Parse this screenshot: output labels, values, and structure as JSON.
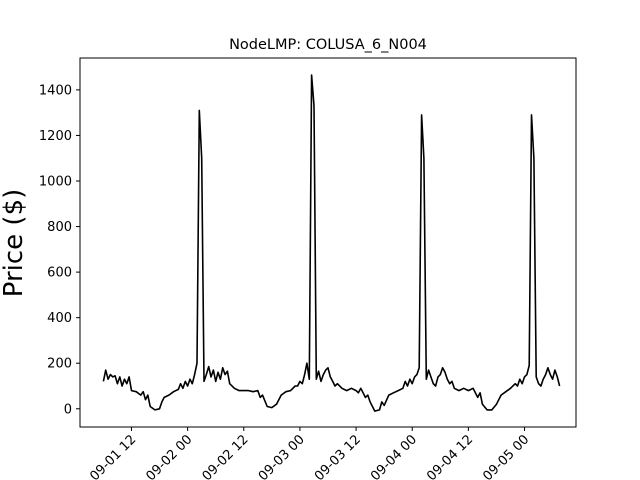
{
  "chart_data": {
    "type": "line",
    "title": "NodeLMP: COLUSA_6_N004",
    "xlabel": "",
    "ylabel": "Price ($)",
    "x_unit": "datetime",
    "xlim": [
      "2020-09-01T01:00",
      "2020-09-05T11:00"
    ],
    "ylim": [
      -80,
      1540
    ],
    "x_ticks": [
      {
        "value": "2020-09-01T12:00",
        "label": "09-01 12"
      },
      {
        "value": "2020-09-02T00:00",
        "label": "09-02 00"
      },
      {
        "value": "2020-09-02T12:00",
        "label": "09-02 12"
      },
      {
        "value": "2020-09-03T00:00",
        "label": "09-03 00"
      },
      {
        "value": "2020-09-03T12:00",
        "label": "09-03 12"
      },
      {
        "value": "2020-09-04T00:00",
        "label": "09-04 00"
      },
      {
        "value": "2020-09-04T12:00",
        "label": "09-04 12"
      },
      {
        "value": "2020-09-05T00:00",
        "label": "09-05 00"
      }
    ],
    "y_ticks": [
      0,
      200,
      400,
      600,
      800,
      1000,
      1200,
      1400
    ],
    "grid": false,
    "series": [
      {
        "color": "#000000",
        "points": [
          [
            "2020-09-01T06:00",
            120
          ],
          [
            "2020-09-01T06:30",
            170
          ],
          [
            "2020-09-01T07:00",
            130
          ],
          [
            "2020-09-01T07:30",
            150
          ],
          [
            "2020-09-01T08:00",
            140
          ],
          [
            "2020-09-01T08:30",
            145
          ],
          [
            "2020-09-01T09:00",
            110
          ],
          [
            "2020-09-01T09:30",
            140
          ],
          [
            "2020-09-01T10:00",
            100
          ],
          [
            "2020-09-01T10:30",
            130
          ],
          [
            "2020-09-01T11:00",
            110
          ],
          [
            "2020-09-01T11:30",
            140
          ],
          [
            "2020-09-01T12:00",
            80
          ],
          [
            "2020-09-01T13:00",
            75
          ],
          [
            "2020-09-01T14:00",
            60
          ],
          [
            "2020-09-01T14:30",
            75
          ],
          [
            "2020-09-01T15:00",
            40
          ],
          [
            "2020-09-01T15:30",
            60
          ],
          [
            "2020-09-01T16:00",
            10
          ],
          [
            "2020-09-01T17:00",
            -5
          ],
          [
            "2020-09-01T18:00",
            0
          ],
          [
            "2020-09-01T18:30",
            30
          ],
          [
            "2020-09-01T19:00",
            50
          ],
          [
            "2020-09-01T20:00",
            60
          ],
          [
            "2020-09-01T21:00",
            75
          ],
          [
            "2020-09-01T22:00",
            85
          ],
          [
            "2020-09-01T22:30",
            110
          ],
          [
            "2020-09-01T23:00",
            90
          ],
          [
            "2020-09-01T23:30",
            120
          ],
          [
            "2020-09-02T00:00",
            100
          ],
          [
            "2020-09-02T00:30",
            130
          ],
          [
            "2020-09-02T01:00",
            110
          ],
          [
            "2020-09-02T01:30",
            150
          ],
          [
            "2020-09-02T02:00",
            200
          ],
          [
            "2020-09-02T02:30",
            1310
          ],
          [
            "2020-09-02T03:00",
            1100
          ],
          [
            "2020-09-02T03:30",
            120
          ],
          [
            "2020-09-02T04:00",
            150
          ],
          [
            "2020-09-02T04:30",
            185
          ],
          [
            "2020-09-02T05:00",
            140
          ],
          [
            "2020-09-02T05:30",
            170
          ],
          [
            "2020-09-02T06:00",
            120
          ],
          [
            "2020-09-02T06:30",
            160
          ],
          [
            "2020-09-02T07:00",
            130
          ],
          [
            "2020-09-02T07:30",
            180
          ],
          [
            "2020-09-02T08:00",
            150
          ],
          [
            "2020-09-02T08:30",
            165
          ],
          [
            "2020-09-02T09:00",
            110
          ],
          [
            "2020-09-02T10:00",
            90
          ],
          [
            "2020-09-02T11:00",
            80
          ],
          [
            "2020-09-02T12:00",
            80
          ],
          [
            "2020-09-02T13:00",
            80
          ],
          [
            "2020-09-02T14:00",
            75
          ],
          [
            "2020-09-02T15:00",
            80
          ],
          [
            "2020-09-02T15:30",
            50
          ],
          [
            "2020-09-02T16:00",
            60
          ],
          [
            "2020-09-02T17:00",
            10
          ],
          [
            "2020-09-02T18:00",
            5
          ],
          [
            "2020-09-02T19:00",
            20
          ],
          [
            "2020-09-02T20:00",
            60
          ],
          [
            "2020-09-02T21:00",
            75
          ],
          [
            "2020-09-02T22:00",
            80
          ],
          [
            "2020-09-02T23:00",
            100
          ],
          [
            "2020-09-02T23:30",
            100
          ],
          [
            "2020-09-03T00:00",
            120
          ],
          [
            "2020-09-03T00:30",
            110
          ],
          [
            "2020-09-03T01:00",
            150
          ],
          [
            "2020-09-03T01:30",
            200
          ],
          [
            "2020-09-03T02:00",
            130
          ],
          [
            "2020-09-03T02:30",
            1465
          ],
          [
            "2020-09-03T03:00",
            1330
          ],
          [
            "2020-09-03T03:30",
            130
          ],
          [
            "2020-09-03T04:00",
            165
          ],
          [
            "2020-09-03T04:30",
            120
          ],
          [
            "2020-09-03T05:00",
            150
          ],
          [
            "2020-09-03T05:30",
            170
          ],
          [
            "2020-09-03T06:00",
            180
          ],
          [
            "2020-09-03T06:30",
            140
          ],
          [
            "2020-09-03T07:00",
            120
          ],
          [
            "2020-09-03T07:30",
            100
          ],
          [
            "2020-09-03T08:00",
            110
          ],
          [
            "2020-09-03T09:00",
            90
          ],
          [
            "2020-09-03T10:00",
            80
          ],
          [
            "2020-09-03T11:00",
            90
          ],
          [
            "2020-09-03T12:00",
            80
          ],
          [
            "2020-09-03T12:30",
            70
          ],
          [
            "2020-09-03T13:00",
            90
          ],
          [
            "2020-09-03T14:00",
            50
          ],
          [
            "2020-09-03T14:30",
            60
          ],
          [
            "2020-09-03T15:00",
            30
          ],
          [
            "2020-09-03T16:00",
            -10
          ],
          [
            "2020-09-03T17:00",
            -5
          ],
          [
            "2020-09-03T17:30",
            30
          ],
          [
            "2020-09-03T18:00",
            15
          ],
          [
            "2020-09-03T19:00",
            60
          ],
          [
            "2020-09-03T20:00",
            70
          ],
          [
            "2020-09-03T21:00",
            80
          ],
          [
            "2020-09-03T22:00",
            90
          ],
          [
            "2020-09-03T22:30",
            120
          ],
          [
            "2020-09-03T23:00",
            100
          ],
          [
            "2020-09-03T23:30",
            130
          ],
          [
            "2020-09-04T00:00",
            110
          ],
          [
            "2020-09-04T00:30",
            140
          ],
          [
            "2020-09-04T01:00",
            150
          ],
          [
            "2020-09-04T01:30",
            180
          ],
          [
            "2020-09-04T02:00",
            1290
          ],
          [
            "2020-09-04T02:30",
            1100
          ],
          [
            "2020-09-04T03:00",
            130
          ],
          [
            "2020-09-04T03:30",
            170
          ],
          [
            "2020-09-04T04:00",
            140
          ],
          [
            "2020-09-04T04:30",
            110
          ],
          [
            "2020-09-04T05:00",
            100
          ],
          [
            "2020-09-04T05:30",
            140
          ],
          [
            "2020-09-04T06:00",
            150
          ],
          [
            "2020-09-04T06:30",
            180
          ],
          [
            "2020-09-04T07:00",
            160
          ],
          [
            "2020-09-04T07:30",
            130
          ],
          [
            "2020-09-04T08:00",
            110
          ],
          [
            "2020-09-04T08:30",
            120
          ],
          [
            "2020-09-04T09:00",
            90
          ],
          [
            "2020-09-04T10:00",
            80
          ],
          [
            "2020-09-04T11:00",
            90
          ],
          [
            "2020-09-04T12:00",
            80
          ],
          [
            "2020-09-04T13:00",
            90
          ],
          [
            "2020-09-04T14:00",
            50
          ],
          [
            "2020-09-04T14:30",
            70
          ],
          [
            "2020-09-04T15:00",
            20
          ],
          [
            "2020-09-04T16:00",
            -5
          ],
          [
            "2020-09-04T17:00",
            -5
          ],
          [
            "2020-09-04T18:00",
            20
          ],
          [
            "2020-09-04T19:00",
            60
          ],
          [
            "2020-09-04T20:00",
            75
          ],
          [
            "2020-09-04T21:00",
            90
          ],
          [
            "2020-09-04T22:00",
            110
          ],
          [
            "2020-09-04T22:30",
            100
          ],
          [
            "2020-09-04T23:00",
            130
          ],
          [
            "2020-09-04T23:30",
            110
          ],
          [
            "2020-09-05T00:00",
            140
          ],
          [
            "2020-09-05T00:30",
            150
          ],
          [
            "2020-09-05T01:00",
            190
          ],
          [
            "2020-09-05T01:30",
            1290
          ],
          [
            "2020-09-05T02:00",
            1100
          ],
          [
            "2020-09-05T02:30",
            140
          ],
          [
            "2020-09-05T03:00",
            110
          ],
          [
            "2020-09-05T03:30",
            100
          ],
          [
            "2020-09-05T04:00",
            130
          ],
          [
            "2020-09-05T04:30",
            150
          ],
          [
            "2020-09-05T05:00",
            180
          ],
          [
            "2020-09-05T05:30",
            150
          ],
          [
            "2020-09-05T06:00",
            130
          ],
          [
            "2020-09-05T06:30",
            170
          ],
          [
            "2020-09-05T07:00",
            140
          ],
          [
            "2020-09-05T07:30",
            100
          ]
        ]
      }
    ]
  }
}
